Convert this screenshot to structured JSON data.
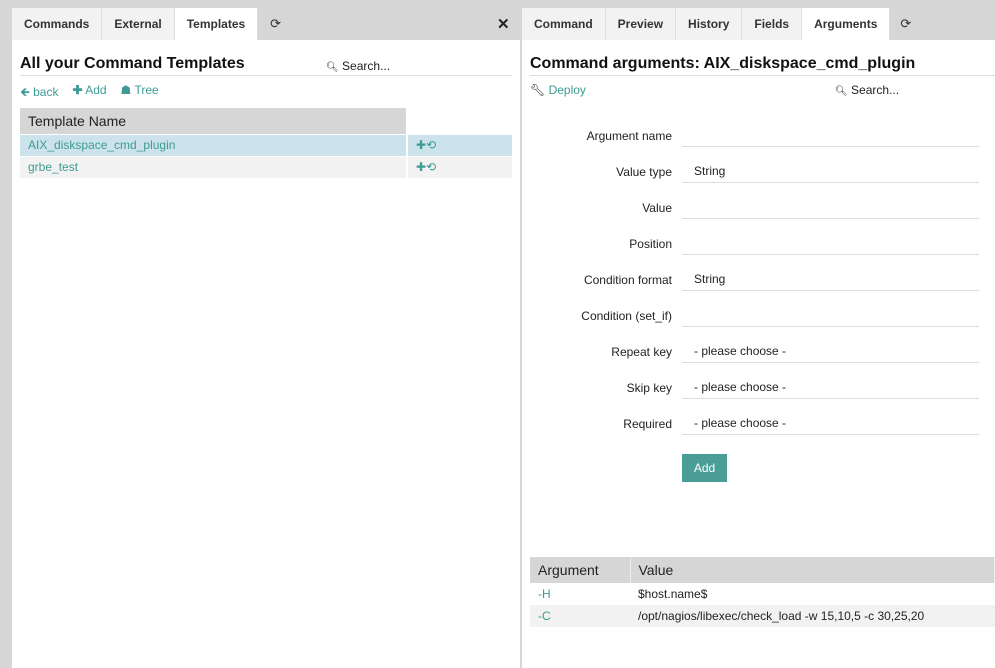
{
  "left": {
    "tabs": [
      "Commands",
      "External",
      "Templates"
    ],
    "active_tab": "Templates",
    "title": "All your Command Templates",
    "search_placeholder": "Search...",
    "links": {
      "back": "back",
      "add": "Add",
      "tree": "Tree"
    },
    "table": {
      "header": "Template Name",
      "rows": [
        "AIX_diskspace_cmd_plugin",
        "grbe_test"
      ]
    }
  },
  "right": {
    "tabs": [
      "Command",
      "Preview",
      "History",
      "Fields",
      "Arguments"
    ],
    "active_tab": "Arguments",
    "title": "Command arguments: AIX_diskspace_cmd_plugin",
    "deploy": "Deploy",
    "search_placeholder": "Search...",
    "form": [
      {
        "label": "Argument name",
        "value": ""
      },
      {
        "label": "Value type",
        "value": "String"
      },
      {
        "label": "Value",
        "value": ""
      },
      {
        "label": "Position",
        "value": ""
      },
      {
        "label": "Condition format",
        "value": "String"
      },
      {
        "label": "Condition (set_if)",
        "value": ""
      },
      {
        "label": "Repeat key",
        "value": "- please choose -"
      },
      {
        "label": "Skip key",
        "value": "- please choose -"
      },
      {
        "label": "Required",
        "value": "- please choose -"
      }
    ],
    "add_button": "Add",
    "args_table": {
      "headers": [
        "Argument",
        "Value"
      ],
      "rows": [
        [
          "-H",
          "$host.name$"
        ],
        [
          "-C",
          "/opt/nagios/libexec/check_load -w 15,10,5 -c 30,25,20"
        ]
      ]
    }
  },
  "colors": {
    "accent": "#3d9b94",
    "selected_row": "#cde3ec",
    "header_bg": "#d6d6d6"
  }
}
